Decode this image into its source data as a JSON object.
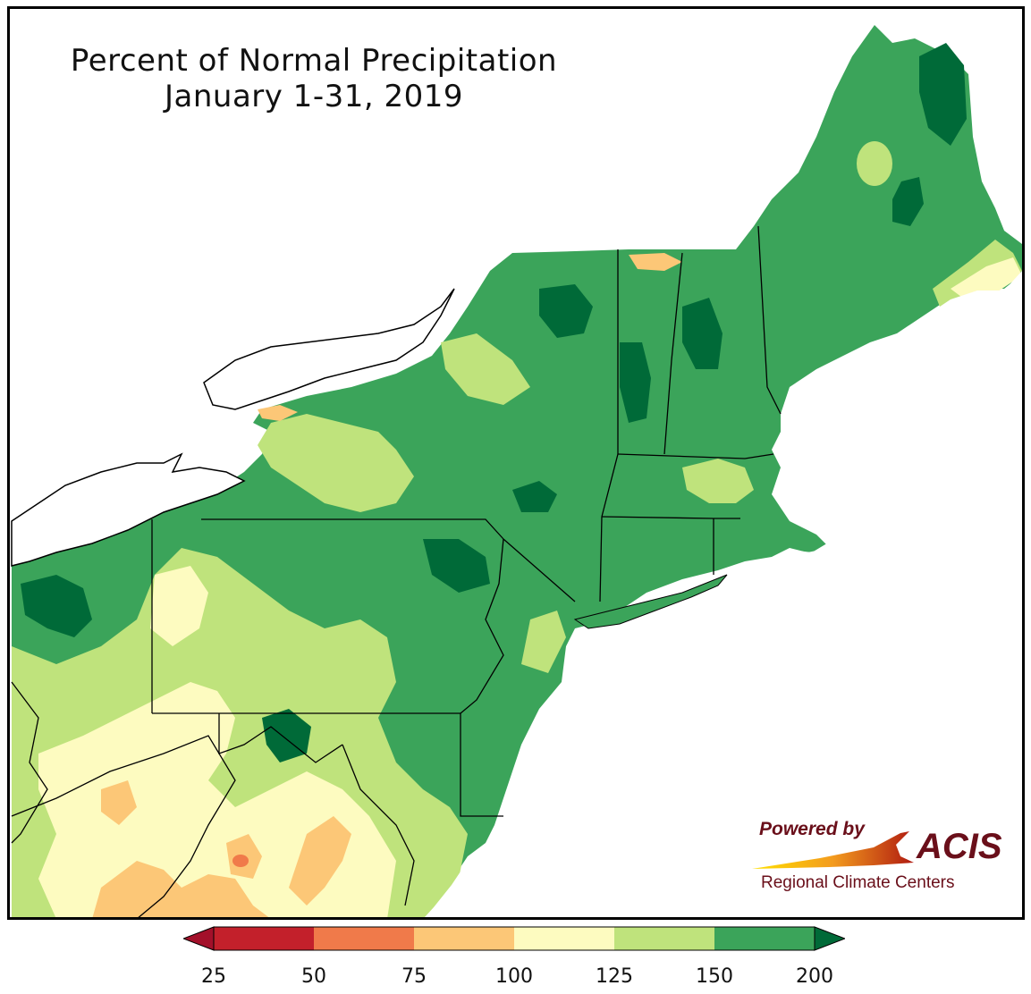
{
  "title": {
    "line1": "Percent of Normal Precipitation",
    "line2": "January 1-31, 2019"
  },
  "logo": {
    "powered_by": "Powered by",
    "brand": "ACIS",
    "org": "Regional Climate Centers"
  },
  "legend": {
    "bins": [
      {
        "from": 25,
        "to": 50,
        "color": "#c3202b"
      },
      {
        "from": 50,
        "to": 75,
        "color": "#f07a4a"
      },
      {
        "from": 75,
        "to": 100,
        "color": "#fcc777"
      },
      {
        "from": 100,
        "to": 125,
        "color": "#fdfbc0"
      },
      {
        "from": 125,
        "to": 150,
        "color": "#bfe37c"
      },
      {
        "from": 150,
        "to": 200,
        "color": "#3ba45a"
      }
    ],
    "under_color": "#a3102a",
    "over_color": "#006a38",
    "ticks": [
      "25",
      "50",
      "75",
      "100",
      "125",
      "150",
      "200"
    ]
  },
  "colors": {
    "deep_green": "#006a38",
    "green": "#3ba45a",
    "light_green": "#bfe37c",
    "cream": "#fdfbc0",
    "tan": "#fcc777",
    "orange": "#f07a4a",
    "red": "#c3202b",
    "water": "#ffffff",
    "boundary": "#000000"
  }
}
